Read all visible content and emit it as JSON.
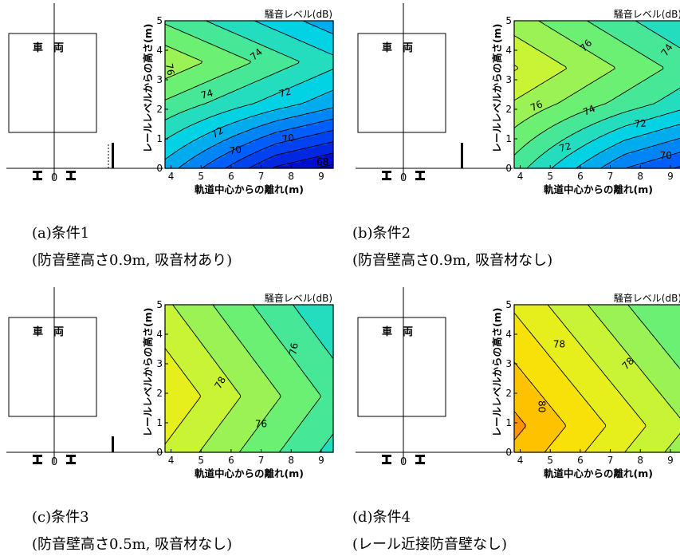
{
  "panels": [
    {
      "id": "a",
      "vehicle_label": "車両",
      "rail_center_label": "0",
      "caption_line1": "(a)条件1",
      "caption_line2": "(防音壁高さ0.9m, 吸音材あり)",
      "barrier": {
        "height_m": 0.9,
        "absorber": true,
        "dashed": true
      },
      "chart_data": {
        "type": "contour",
        "title": "騒音レベル(dB)",
        "xlabel": "軌道中心からの離れ(m)",
        "ylabel": "レールレベルからの高さ(m)",
        "xlim": [
          3.8,
          9.4
        ],
        "ylim": [
          0,
          5
        ],
        "xticks": [
          4,
          5,
          6,
          7,
          8,
          9
        ],
        "yticks": [
          0,
          1,
          2,
          3,
          4,
          5
        ],
        "model": {
          "peak": 77.3,
          "xc": 3.0,
          "yc": 3.6,
          "ax": 0.62,
          "ay": 1.4,
          "by": 1.2,
          "bx": 0
        },
        "levels": [
          66,
          67,
          68,
          69,
          70,
          71,
          72,
          73,
          74,
          75,
          76,
          77
        ],
        "contour_labels": [
          {
            "text": "76",
            "x": 3.95,
            "y": 3.35,
            "rot": 80
          },
          {
            "text": "74",
            "x": 6.85,
            "y": 3.85,
            "rot": -40
          },
          {
            "text": "74",
            "x": 5.2,
            "y": 2.5,
            "rot": -15
          },
          {
            "text": "72",
            "x": 7.8,
            "y": 2.55,
            "rot": -15
          },
          {
            "text": "72",
            "x": 5.55,
            "y": 1.2,
            "rot": -30
          },
          {
            "text": "70",
            "x": 6.15,
            "y": 0.6,
            "rot": -10
          },
          {
            "text": "70",
            "x": 7.9,
            "y": 1.0,
            "rot": -10
          },
          {
            "text": "68",
            "x": 9.05,
            "y": 0.2,
            "rot": 0
          }
        ]
      }
    },
    {
      "id": "b",
      "vehicle_label": "車両",
      "rail_center_label": "0",
      "caption_line1": "(b)条件2",
      "caption_line2": "(防音壁高さ0.9m, 吸音材なし)",
      "barrier": {
        "height_m": 0.9,
        "absorber": false,
        "dashed": false
      },
      "chart_data": {
        "type": "contour",
        "title": "騒音レベル(dB)",
        "xlabel": "軌道中心からの離れ(m)",
        "ylabel": "レールレベルからの高さ(m)",
        "xlim": [
          3.8,
          9.4
        ],
        "ylim": [
          0,
          5
        ],
        "xticks": [
          4,
          5,
          6,
          7,
          8,
          9
        ],
        "yticks": [
          0,
          1,
          2,
          3,
          4,
          5
        ],
        "model": {
          "peak": 78.6,
          "xc": 3.0,
          "yc": 3.4,
          "ax": 0.62,
          "ay": 1.0,
          "by": 1.1,
          "bx": 0
        },
        "levels": [
          68,
          69,
          70,
          71,
          72,
          73,
          74,
          75,
          76,
          77,
          78
        ],
        "contour_labels": [
          {
            "text": "76",
            "x": 6.2,
            "y": 4.15,
            "rot": -45
          },
          {
            "text": "74",
            "x": 8.9,
            "y": 4.0,
            "rot": -55
          },
          {
            "text": "76",
            "x": 4.55,
            "y": 2.1,
            "rot": -25
          },
          {
            "text": "74",
            "x": 6.3,
            "y": 1.95,
            "rot": -25
          },
          {
            "text": "72",
            "x": 8.0,
            "y": 1.5,
            "rot": -5
          },
          {
            "text": "72",
            "x": 5.5,
            "y": 0.7,
            "rot": -15
          },
          {
            "text": "70",
            "x": 8.85,
            "y": 0.42,
            "rot": 0
          }
        ]
      }
    },
    {
      "id": "c",
      "vehicle_label": "車両",
      "rail_center_label": "0",
      "caption_line1": "(c)条件3",
      "caption_line2": "(防音壁高さ0.5m, 吸音材なし)",
      "barrier": {
        "height_m": 0.5,
        "absorber": false,
        "dashed": false
      },
      "chart_data": {
        "type": "contour",
        "title": "騒音レベル(dB)",
        "xlabel": "軌道中心からの離れ(m)",
        "ylabel": "レールレベルからの高さ(m)",
        "xlim": [
          3.8,
          9.4
        ],
        "ylim": [
          0,
          5
        ],
        "xticks": [
          4,
          5,
          6,
          7,
          8,
          9
        ],
        "yticks": [
          0,
          1,
          2,
          3,
          4,
          5
        ],
        "model": {
          "peak": 79.5,
          "xc": 3.0,
          "yc": 1.9,
          "ax": 0.75,
          "ay": 0.55,
          "by": 0,
          "bx": 0
        },
        "levels": [
          74,
          75,
          76,
          77,
          78,
          79
        ],
        "contour_labels": [
          {
            "text": "78",
            "x": 5.65,
            "y": 2.35,
            "rot": -60
          },
          {
            "text": "76",
            "x": 8.1,
            "y": 3.5,
            "rot": -80
          },
          {
            "text": "76",
            "x": 7.0,
            "y": 0.95,
            "rot": 0
          }
        ]
      }
    },
    {
      "id": "d",
      "vehicle_label": "車両",
      "rail_center_label": "0",
      "caption_line1": "(d)条件4",
      "caption_line2": "(レール近接防音壁なし)",
      "barrier": null,
      "chart_data": {
        "type": "contour",
        "title": "騒音レベル(dB)",
        "xlabel": "軌道中心からの離れ(m)",
        "ylabel": "レールレベルからの高さ(m)",
        "xlim": [
          3.8,
          9.4
        ],
        "ylim": [
          0,
          5
        ],
        "xticks": [
          4,
          5,
          6,
          7,
          8,
          9
        ],
        "yticks": [
          0,
          1,
          2,
          3,
          4,
          5
        ],
        "model": {
          "peak": 81.9,
          "xc": 3.0,
          "yc": 0.9,
          "ax": 0.75,
          "ay": 0.6,
          "by": 0,
          "bx": 0
        },
        "levels": [
          76,
          77,
          78,
          79,
          80,
          81
        ],
        "contour_labels": [
          {
            "text": "78",
            "x": 5.3,
            "y": 3.65,
            "rot": 0
          },
          {
            "text": "78",
            "x": 7.6,
            "y": 3.0,
            "rot": -45
          },
          {
            "text": "80",
            "x": 4.7,
            "y": 1.55,
            "rot": 90
          }
        ]
      }
    }
  ]
}
